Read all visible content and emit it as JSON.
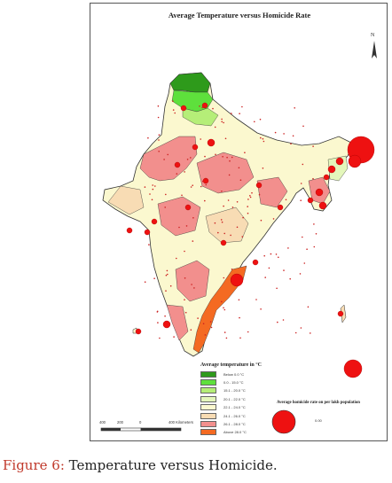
{
  "title": "Average Temperature versus Homicide Rate",
  "north_label": "N",
  "legend": {
    "title": "Average temperature in °C",
    "classes": [
      {
        "label": "Below 0.0 °C",
        "color": "#2e9a1b"
      },
      {
        "label": "0.0 - 15.0 °C",
        "color": "#5ee03c"
      },
      {
        "label": "15.1 - 20.0 °C",
        "color": "#b5ee78"
      },
      {
        "label": "20.1 - 22.0 °C",
        "color": "#e4f7bb"
      },
      {
        "label": "22.1 - 24.0 °C",
        "color": "#fbf8cf"
      },
      {
        "label": "24.1 - 26.0 °C",
        "color": "#f8dcb4"
      },
      {
        "label": "26.1 - 28.0 °C",
        "color": "#f28f8d"
      },
      {
        "label": "Above 28.0 °C",
        "color": "#f46a22"
      }
    ]
  },
  "bubble_legend": {
    "title": "Average homicide rate on per lakh population",
    "value": "0.00"
  },
  "scale_bar": {
    "ticks": [
      "400",
      "200",
      "0",
      "400 Kilometers"
    ]
  },
  "caption": {
    "label": "Figure 6:",
    "text": " Temperature versus Homicide."
  },
  "colors": {
    "bubble": "#ee1111",
    "border": "#333333"
  }
}
